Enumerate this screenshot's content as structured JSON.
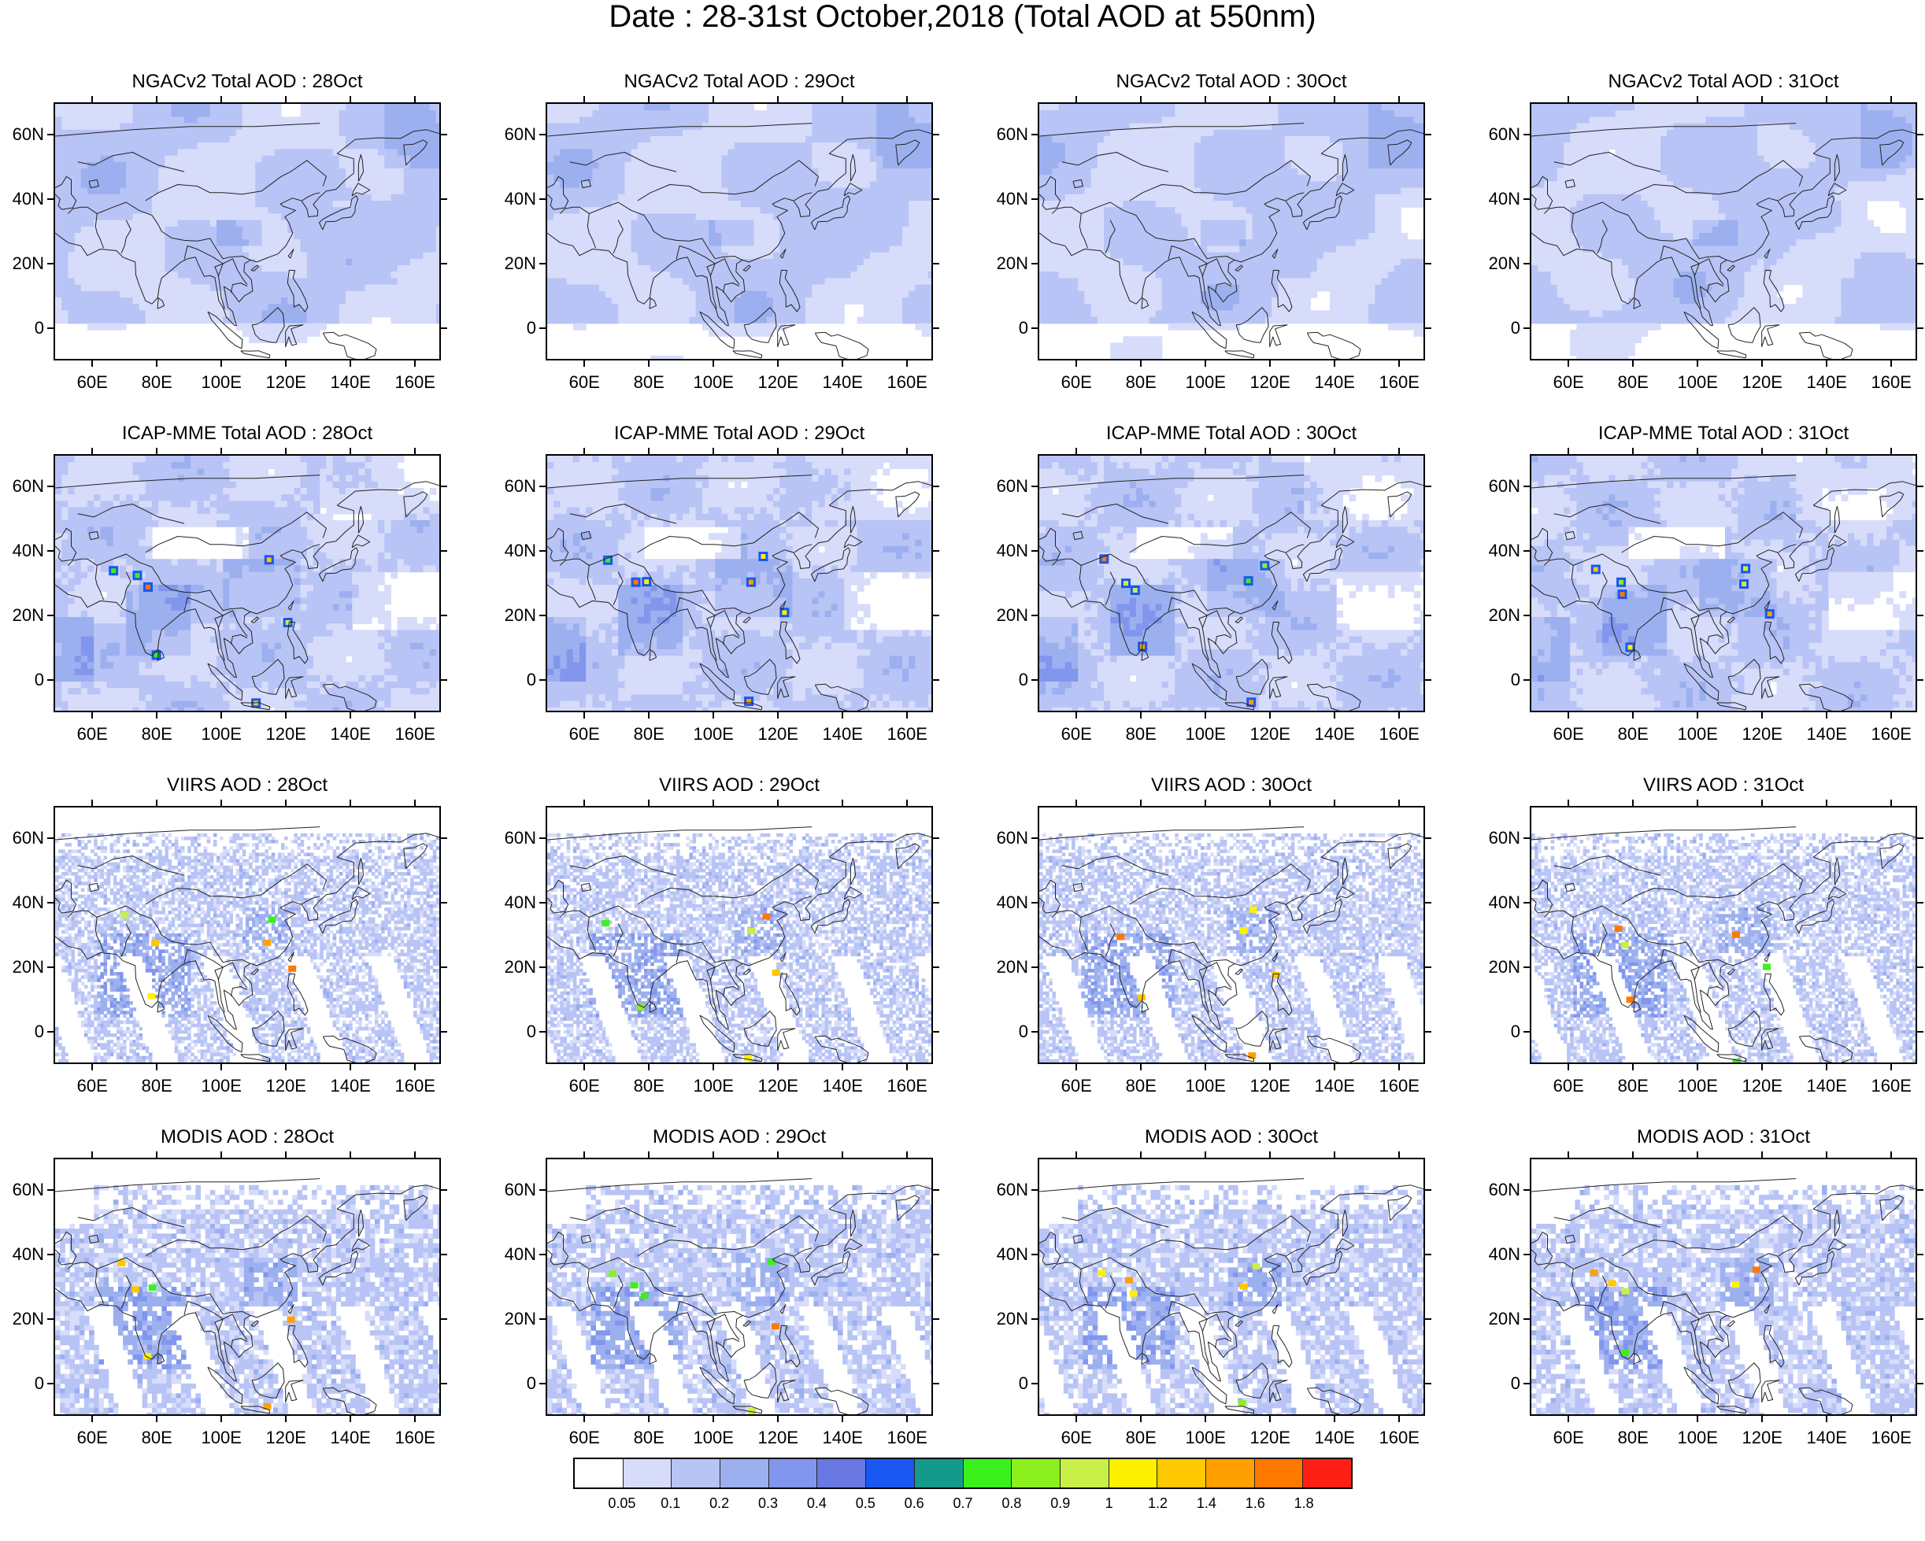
{
  "title": "Date : 28-31st October,2018 (Total AOD at 550nm)",
  "axes": {
    "lat_ticks": [
      "60N",
      "40N",
      "20N",
      "0"
    ],
    "lon_ticks": [
      "60E",
      "80E",
      "100E",
      "120E",
      "140E",
      "160E"
    ]
  },
  "rows": [
    {
      "product": "NGACv2",
      "style": "smooth",
      "panels": [
        {
          "title": "NGACv2 Total AOD : 28Oct"
        },
        {
          "title": "NGACv2 Total AOD : 29Oct"
        },
        {
          "title": "NGACv2 Total AOD : 30Oct"
        },
        {
          "title": "NGACv2 Total AOD : 31Oct"
        }
      ]
    },
    {
      "product": "ICAP-MME",
      "style": "blocky",
      "panels": [
        {
          "title": "ICAP-MME Total AOD : 28Oct"
        },
        {
          "title": "ICAP-MME Total AOD : 29Oct"
        },
        {
          "title": "ICAP-MME Total AOD : 30Oct"
        },
        {
          "title": "ICAP-MME Total AOD : 31Oct"
        }
      ]
    },
    {
      "product": "VIIRS",
      "style": "sparse",
      "panels": [
        {
          "title": "VIIRS AOD : 28Oct"
        },
        {
          "title": "VIIRS AOD : 29Oct"
        },
        {
          "title": "VIIRS AOD : 30Oct"
        },
        {
          "title": "VIIRS AOD : 31Oct"
        }
      ]
    },
    {
      "product": "MODIS",
      "style": "swath",
      "panels": [
        {
          "title": "MODIS AOD : 28Oct"
        },
        {
          "title": "MODIS AOD : 29Oct"
        },
        {
          "title": "MODIS AOD : 30Oct"
        },
        {
          "title": "MODIS AOD : 31Oct"
        }
      ]
    }
  ],
  "colorbar": {
    "labels": [
      "0.05",
      "0.1",
      "0.2",
      "0.3",
      "0.4",
      "0.5",
      "0.6",
      "0.7",
      "0.8",
      "0.9",
      "1",
      "1.2",
      "1.4",
      "1.6",
      "1.8"
    ],
    "colors": [
      "#ffffff",
      "#d6dcfa",
      "#b8c4f5",
      "#9cb0f0",
      "#8196ec",
      "#6a78e4",
      "#1a56f0",
      "#149a8a",
      "#3cf01e",
      "#8cf01e",
      "#c8f046",
      "#fff000",
      "#ffc800",
      "#ffa000",
      "#ff7800",
      "#ff1e14"
    ]
  }
}
